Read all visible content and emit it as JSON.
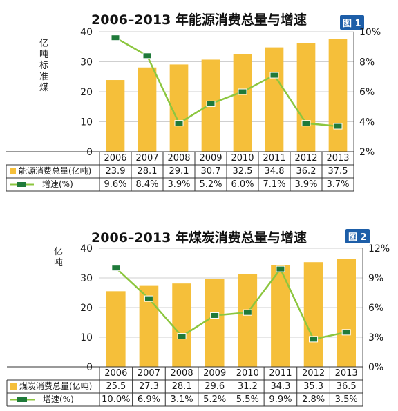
{
  "chart_data": [
    {
      "type": "bar",
      "title": "2006–2013 年能源消费总量与增速",
      "badge": "图 1",
      "ylabel": "亿吨标准煤",
      "categories": [
        "2006",
        "2007",
        "2008",
        "2009",
        "2010",
        "2011",
        "2012",
        "2013"
      ],
      "ylim": [
        0,
        40
      ],
      "y_ticks": [
        "0",
        "10",
        "20",
        "30",
        "40"
      ],
      "y2lim": [
        2,
        10
      ],
      "y2_ticks": [
        "2%",
        "4%",
        "6%",
        "8%",
        "10%"
      ],
      "series": [
        {
          "name": "能源消费总量(亿吨)",
          "type": "bar",
          "color": "#f5bf3a",
          "values": [
            23.9,
            28.1,
            29.1,
            30.7,
            32.5,
            34.8,
            36.2,
            37.5
          ],
          "labels": [
            "23.9",
            "28.1",
            "29.1",
            "30.7",
            "32.5",
            "34.8",
            "36.2",
            "37.5"
          ]
        },
        {
          "name": "增速(%)",
          "type": "line",
          "axis": "right",
          "color": "#8cc63f",
          "marker_color": "#1f7a3a",
          "values": [
            9.6,
            8.4,
            3.9,
            5.2,
            6.0,
            7.1,
            3.9,
            3.7
          ],
          "labels": [
            "9.6%",
            "8.4%",
            "3.9%",
            "5.2%",
            "6.0%",
            "7.1%",
            "3.9%",
            "3.7%"
          ]
        }
      ]
    },
    {
      "type": "bar",
      "title": "2006–2013 年煤炭消费总量与增速",
      "badge": "图 2",
      "ylabel": "亿吨",
      "categories": [
        "2006",
        "2007",
        "2008",
        "2009",
        "2010",
        "2011",
        "2012",
        "2013"
      ],
      "ylim": [
        0,
        40
      ],
      "y_ticks": [
        "0",
        "10",
        "20",
        "30",
        "40"
      ],
      "y2lim": [
        0,
        12
      ],
      "y2_ticks": [
        "0%",
        "3%",
        "6%",
        "9%",
        "12%"
      ],
      "series": [
        {
          "name": "煤炭消费总量(亿吨)",
          "type": "bar",
          "color": "#f5bf3a",
          "values": [
            25.5,
            27.3,
            28.1,
            29.6,
            31.2,
            34.3,
            35.3,
            36.5
          ],
          "labels": [
            "25.5",
            "27.3",
            "28.1",
            "29.6",
            "31.2",
            "34.3",
            "35.3",
            "36.5"
          ]
        },
        {
          "name": "增速(%)",
          "type": "line",
          "axis": "right",
          "color": "#8cc63f",
          "marker_color": "#1f7a3a",
          "values": [
            10.0,
            6.9,
            3.1,
            5.2,
            5.5,
            9.9,
            2.8,
            3.5
          ],
          "labels": [
            "10.0%",
            "6.9%",
            "3.1%",
            "5.2%",
            "5.5%",
            "9.9%",
            "2.8%",
            "3.5%"
          ]
        }
      ]
    }
  ]
}
